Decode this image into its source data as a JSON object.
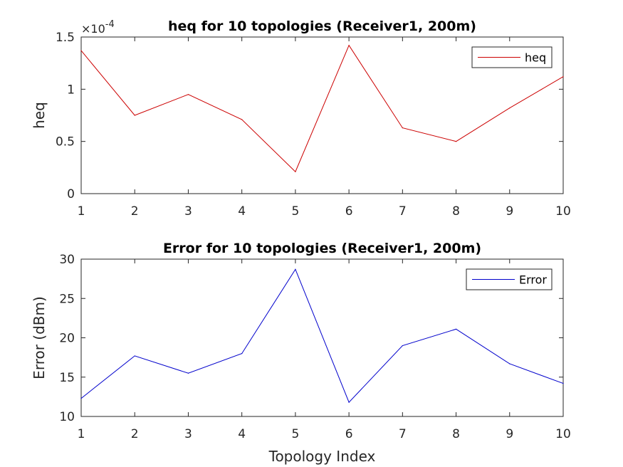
{
  "chart_data": [
    {
      "type": "line",
      "title": "heq for 10 topologies (Receiver1, 200m)",
      "xlabel": "",
      "ylabel": "heq",
      "y_exponent_label": "×10",
      "y_exponent_power": "-4",
      "x": [
        1,
        2,
        3,
        4,
        5,
        6,
        7,
        8,
        9,
        10
      ],
      "xlim": [
        1,
        10
      ],
      "ylim": [
        0,
        1.5
      ],
      "xticks": [
        1,
        2,
        3,
        4,
        5,
        6,
        7,
        8,
        9,
        10
      ],
      "xtick_labels": [
        "1",
        "2",
        "3",
        "4",
        "5",
        "6",
        "7",
        "8",
        "9",
        "10"
      ],
      "yticks": [
        0,
        0.5,
        1,
        1.5
      ],
      "ytick_labels": [
        "0",
        "0.5",
        "1",
        "1.5"
      ],
      "grid": false,
      "legend_position": "top-right",
      "series": [
        {
          "name": "heq",
          "color": "#cc0000",
          "values": [
            1.37,
            0.75,
            0.95,
            0.71,
            0.21,
            1.42,
            0.63,
            0.5,
            0.82,
            1.12
          ]
        }
      ]
    },
    {
      "type": "line",
      "title": "Error for 10 topologies (Receiver1, 200m)",
      "xlabel": "Topology Index",
      "ylabel": "Error (dBm)",
      "x": [
        1,
        2,
        3,
        4,
        5,
        6,
        7,
        8,
        9,
        10
      ],
      "xlim": [
        1,
        10
      ],
      "ylim": [
        10,
        30
      ],
      "xticks": [
        1,
        2,
        3,
        4,
        5,
        6,
        7,
        8,
        9,
        10
      ],
      "xtick_labels": [
        "1",
        "2",
        "3",
        "4",
        "5",
        "6",
        "7",
        "8",
        "9",
        "10"
      ],
      "yticks": [
        10,
        15,
        20,
        25,
        30
      ],
      "ytick_labels": [
        "10",
        "15",
        "20",
        "25",
        "30"
      ],
      "grid": false,
      "legend_position": "top-right",
      "series": [
        {
          "name": "Error",
          "color": "#0000cc",
          "values": [
            12.3,
            17.7,
            15.5,
            18.0,
            28.7,
            11.8,
            19.0,
            21.1,
            16.7,
            14.2
          ]
        }
      ]
    }
  ]
}
